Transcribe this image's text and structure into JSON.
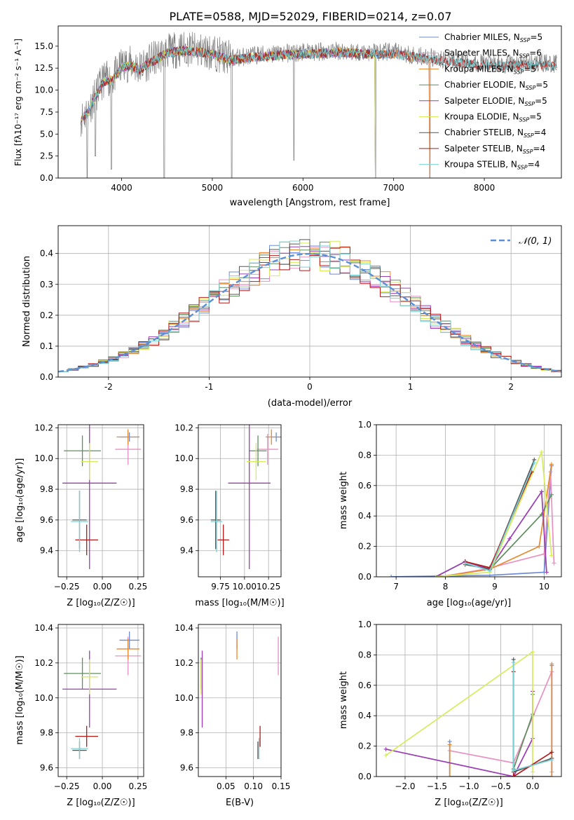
{
  "figure_title": "PLATE=0588, MJD=52029, FIBERID=0214, z=0.07",
  "colors": {
    "Chabrier MILES": "#6b8bd6",
    "Salpeter MILES": "#e991c0",
    "Kroupa MILES": "#e58a2e",
    "Chabrier ELODIE": "#5e8f5e",
    "Salpeter ELODIE": "#9b3cb5",
    "Kroupa ELODIE": "#d6ec5a",
    "Chabrier STELIB": "#555555",
    "Salpeter STELIB": "#b51a1a",
    "Kroupa STELIB": "#79d3d6",
    "data": "#808080",
    "gauss": "#5b8fd6"
  },
  "chart_data": [
    {
      "id": "spectrum",
      "type": "line",
      "title": "PLATE=0588, MJD=52029, FIBERID=0214, z=0.07",
      "xlabel": "wavelength [Angstrom, rest frame]",
      "ylabel": "Flux [fλ10⁻¹⁷ erg cm⁻² s⁻¹ A⁻¹]",
      "xlim": [
        3300,
        8850
      ],
      "ylim": [
        0,
        17.3
      ],
      "xticks": [
        4000,
        5000,
        6000,
        7000,
        8000
      ],
      "yticks": [
        0.0,
        2.5,
        5.0,
        7.5,
        10.0,
        12.5,
        15.0
      ],
      "legend": [
        "Chabrier MILES, N_SSP=5",
        "Salpeter MILES, N_SSP=6",
        "Kroupa MILES, N_SSP=5",
        "Chabrier ELODIE, N_SSP=5",
        "Salpeter ELODIE, N_SSP=5",
        "Kroupa ELODIE, N_SSP=5",
        "Chabrier STELIB, N_SSP=4",
        "Salpeter STELIB, N_SSP=4",
        "Kroupa STELIB, N_SSP=4"
      ],
      "legend_position": "right",
      "continuum": [
        [
          3550,
          6.8
        ],
        [
          3620,
          7.5
        ],
        [
          3700,
          9.2
        ],
        [
          3800,
          11.2
        ],
        [
          3900,
          11.3
        ],
        [
          4000,
          12.8
        ],
        [
          4100,
          13.0
        ],
        [
          4200,
          12.5
        ],
        [
          4300,
          13.2
        ],
        [
          4500,
          14.4
        ],
        [
          4700,
          14.7
        ],
        [
          5000,
          14.3
        ],
        [
          5200,
          13.6
        ],
        [
          5500,
          14.0
        ],
        [
          5800,
          14.2
        ],
        [
          6100,
          14.3
        ],
        [
          6400,
          14.5
        ],
        [
          6700,
          14.3
        ],
        [
          7000,
          14.3
        ],
        [
          7400,
          13.7
        ],
        [
          7800,
          13.2
        ],
        [
          8200,
          12.9
        ],
        [
          8500,
          13.1
        ],
        [
          8800,
          13.0
        ]
      ],
      "model_xmax": {
        "MILES": 7400,
        "ELODIE": 6800,
        "STELIB": 8800
      },
      "dips": [
        [
          3620,
          0.0
        ],
        [
          3710,
          2.5
        ],
        [
          3885,
          1.0
        ],
        [
          4470,
          0.0
        ],
        [
          5215,
          0.0
        ],
        [
          5900,
          2.0
        ],
        [
          6800,
          0.0
        ],
        [
          7400,
          0.0
        ]
      ]
    },
    {
      "id": "residuals",
      "type": "line",
      "xlabel": "(data-model)/error",
      "ylabel": "Normed distribution",
      "xlim": [
        -2.5,
        2.5
      ],
      "ylim": [
        0,
        0.49
      ],
      "xticks": [
        -2,
        -1,
        0,
        1,
        2
      ],
      "yticks": [
        0.0,
        0.1,
        0.2,
        0.3,
        0.4
      ],
      "legend": [
        "𝒩(0, 1)"
      ],
      "legend_position": "top-right",
      "bin_width": 0.1
    },
    {
      "id": "age-vs-Z",
      "type": "scatter",
      "xlabel": "Z [log10(Z/Z☉)]",
      "ylabel": "age  [log10(age/yr)]",
      "xlim": [
        -0.31,
        0.29
      ],
      "ylim": [
        9.23,
        10.22
      ],
      "xticks": [
        -0.25,
        0.0,
        0.25
      ],
      "xticklabels": [
        "−0.25",
        "0.00",
        "0.25"
      ],
      "yticks": [
        9.4,
        9.6,
        9.8,
        10.0,
        10.2
      ],
      "points": [
        {
          "model": "Chabrier MILES",
          "x": 0.19,
          "xerr": 0.07,
          "y": 10.14,
          "yerr": 0.03
        },
        {
          "model": "Salpeter MILES",
          "x": 0.18,
          "xerr": 0.09,
          "y": 10.06,
          "yerr": 0.1
        },
        {
          "model": "Kroupa MILES",
          "x": 0.18,
          "xerr": 0.08,
          "y": 10.14,
          "yerr": 0.05
        },
        {
          "model": "Chabrier ELODIE",
          "x": -0.14,
          "xerr": 0.13,
          "y": 10.05,
          "yerr": 0.1
        },
        {
          "model": "Salpeter ELODIE",
          "x": -0.09,
          "xerr": 0.19,
          "y": 9.84,
          "yerr": 0.56
        },
        {
          "model": "Kroupa ELODIE",
          "x": -0.09,
          "xerr": 0.06,
          "y": 9.98,
          "yerr": 0.12
        },
        {
          "model": "Chabrier STELIB",
          "x": -0.16,
          "xerr": 0.05,
          "y": 9.6,
          "yerr": 0.19
        },
        {
          "model": "Salpeter STELIB",
          "x": -0.11,
          "xerr": 0.08,
          "y": 9.47,
          "yerr": 0.1
        },
        {
          "model": "Kroupa STELIB",
          "x": -0.16,
          "xerr": 0.06,
          "y": 9.59,
          "yerr": 0.2
        }
      ]
    },
    {
      "id": "age-vs-mass",
      "type": "scatter",
      "xlabel": "mass [log10(M/M☉)]",
      "xlim": [
        9.52,
        10.38
      ],
      "ylim": [
        9.23,
        10.22
      ],
      "xticks": [
        9.75,
        10.0,
        10.25
      ],
      "xticklabels": [
        "9.75",
        "10.00",
        "10.25"
      ],
      "yticks": [
        9.4,
        9.6,
        9.8,
        10.0,
        10.2
      ],
      "points": [
        {
          "model": "Chabrier MILES",
          "x": 10.33,
          "xerr": 0.05,
          "y": 10.14,
          "yerr": 0.03
        },
        {
          "model": "Salpeter MILES",
          "x": 10.24,
          "xerr": 0.11,
          "y": 10.06,
          "yerr": 0.1
        },
        {
          "model": "Kroupa MILES",
          "x": 10.28,
          "xerr": 0.06,
          "y": 10.14,
          "yerr": 0.05
        },
        {
          "model": "Chabrier ELODIE",
          "x": 10.14,
          "xerr": 0.09,
          "y": 10.05,
          "yerr": 0.1
        },
        {
          "model": "Salpeter ELODIE",
          "x": 10.05,
          "xerr": 0.22,
          "y": 9.84,
          "yerr": 0.56
        },
        {
          "model": "Kroupa ELODIE",
          "x": 10.12,
          "xerr": 0.1,
          "y": 9.98,
          "yerr": 0.12
        },
        {
          "model": "Chabrier STELIB",
          "x": 9.7,
          "xerr": 0.05,
          "y": 9.6,
          "yerr": 0.19
        },
        {
          "model": "Salpeter STELIB",
          "x": 9.78,
          "xerr": 0.06,
          "y": 9.47,
          "yerr": 0.1
        },
        {
          "model": "Kroupa STELIB",
          "x": 9.71,
          "xerr": 0.06,
          "y": 9.59,
          "yerr": 0.2
        }
      ]
    },
    {
      "id": "weight-vs-age",
      "type": "line",
      "xlabel": "age  [log10(age/yr)]",
      "ylabel": "mass weight",
      "xlim": [
        6.6,
        10.35
      ],
      "ylim": [
        0,
        1.0
      ],
      "xticks": [
        7,
        8,
        9,
        10
      ],
      "yticks": [
        0.0,
        0.2,
        0.4,
        0.6,
        0.8,
        1.0
      ],
      "series": [
        {
          "model": "Chabrier MILES",
          "points": [
            [
              6.9,
              0.0
            ],
            [
              8.9,
              0.01
            ],
            [
              10.0,
              0.03
            ],
            [
              10.15,
              0.73
            ]
          ]
        },
        {
          "model": "Salpeter MILES",
          "points": [
            [
              7.9,
              0.0
            ],
            [
              8.8,
              0.05
            ],
            [
              10.0,
              0.15
            ],
            [
              10.13,
              0.69
            ],
            [
              10.2,
              0.09
            ]
          ]
        },
        {
          "model": "Kroupa MILES",
          "points": [
            [
              7.9,
              0.0
            ],
            [
              8.9,
              0.05
            ],
            [
              9.9,
              0.2
            ],
            [
              10.15,
              0.74
            ]
          ]
        },
        {
          "model": "Chabrier ELODIE",
          "points": [
            [
              7.8,
              0.0
            ],
            [
              8.4,
              0.1
            ],
            [
              8.9,
              0.05
            ],
            [
              9.95,
              0.41
            ],
            [
              10.15,
              0.54
            ]
          ]
        },
        {
          "model": "Salpeter ELODIE",
          "points": [
            [
              7.8,
              0.0
            ],
            [
              8.4,
              0.1
            ],
            [
              8.9,
              0.05
            ],
            [
              9.3,
              0.25
            ],
            [
              9.95,
              0.56
            ],
            [
              10.05,
              0.03
            ]
          ]
        },
        {
          "model": "Kroupa ELODIE",
          "points": [
            [
              7.8,
              0.0
            ],
            [
              8.9,
              0.03
            ],
            [
              9.95,
              0.82
            ],
            [
              10.15,
              0.14
            ]
          ]
        },
        {
          "model": "Chabrier STELIB",
          "points": [
            [
              8.4,
              0.08
            ],
            [
              8.9,
              0.05
            ],
            [
              9.8,
              0.77
            ]
          ]
        },
        {
          "model": "Salpeter STELIB",
          "points": [
            [
              8.4,
              0.1
            ],
            [
              8.9,
              0.06
            ],
            [
              9.75,
              0.69
            ]
          ]
        },
        {
          "model": "Kroupa STELIB",
          "points": [
            [
              8.4,
              0.09
            ],
            [
              8.9,
              0.04
            ],
            [
              9.8,
              0.75
            ]
          ]
        }
      ]
    },
    {
      "id": "mass-vs-Z",
      "type": "scatter",
      "xlabel": "Z [log10(Z/Z☉)]",
      "ylabel": "mass [log10(M/M☉)]",
      "xlim": [
        -0.31,
        0.29
      ],
      "ylim": [
        9.55,
        10.42
      ],
      "xticks": [
        -0.25,
        0.0,
        0.25
      ],
      "xticklabels": [
        "−0.25",
        "0.00",
        "0.25"
      ],
      "yticks": [
        9.6,
        9.8,
        10.0,
        10.2,
        10.4
      ],
      "points": [
        {
          "model": "Chabrier MILES",
          "x": 0.19,
          "xerr": 0.07,
          "y": 10.33,
          "yerr": 0.05
        },
        {
          "model": "Salpeter MILES",
          "x": 0.18,
          "xerr": 0.09,
          "y": 10.24,
          "yerr": 0.11
        },
        {
          "model": "Kroupa MILES",
          "x": 0.18,
          "xerr": 0.08,
          "y": 10.28,
          "yerr": 0.06
        },
        {
          "model": "Chabrier ELODIE",
          "x": -0.14,
          "xerr": 0.13,
          "y": 10.14,
          "yerr": 0.09
        },
        {
          "model": "Salpeter ELODIE",
          "x": -0.09,
          "xerr": 0.19,
          "y": 10.05,
          "yerr": 0.22
        },
        {
          "model": "Kroupa ELODIE",
          "x": -0.09,
          "xerr": 0.06,
          "y": 10.12,
          "yerr": 0.1
        },
        {
          "model": "Chabrier STELIB",
          "x": -0.16,
          "xerr": 0.05,
          "y": 9.7,
          "yerr": 0.05
        },
        {
          "model": "Salpeter STELIB",
          "x": -0.11,
          "xerr": 0.08,
          "y": 9.78,
          "yerr": 0.06
        },
        {
          "model": "Kroupa STELIB",
          "x": -0.16,
          "xerr": 0.06,
          "y": 9.71,
          "yerr": 0.06
        }
      ]
    },
    {
      "id": "mass-vs-ebv",
      "type": "scatter",
      "xlabel": "E(B-V)",
      "xlim": [
        0.0,
        0.15
      ],
      "ylim": [
        9.55,
        10.42
      ],
      "xticks": [
        0.05,
        0.1,
        0.15
      ],
      "xticklabels": [
        "0.05",
        "0.10",
        "0.15"
      ],
      "yticks": [
        9.6,
        9.8,
        10.0,
        10.2,
        10.4
      ],
      "points": [
        {
          "model": "Chabrier MILES",
          "x": 0.07,
          "y": 10.33,
          "yerr": 0.05
        },
        {
          "model": "Salpeter MILES",
          "x": 0.145,
          "y": 10.24,
          "yerr": 0.11
        },
        {
          "model": "Kroupa MILES",
          "x": 0.07,
          "y": 10.28,
          "yerr": 0.06
        },
        {
          "model": "Chabrier ELODIE",
          "x": 0.005,
          "y": 10.14,
          "yerr": 0.09
        },
        {
          "model": "Salpeter ELODIE",
          "x": 0.007,
          "y": 10.05,
          "yerr": 0.22
        },
        {
          "model": "Kroupa ELODIE",
          "x": 0.005,
          "y": 10.12,
          "yerr": 0.1
        },
        {
          "model": "Chabrier STELIB",
          "x": 0.108,
          "y": 9.7,
          "yerr": 0.05
        },
        {
          "model": "Salpeter STELIB",
          "x": 0.112,
          "y": 9.78,
          "yerr": 0.06
        },
        {
          "model": "Kroupa STELIB",
          "x": 0.11,
          "y": 9.71,
          "yerr": 0.06
        }
      ]
    },
    {
      "id": "weight-vs-Z",
      "type": "line",
      "xlabel": "Z [log10(Z/Z☉)]",
      "ylabel": "mass weight",
      "xlim": [
        -2.45,
        0.45
      ],
      "ylim": [
        0,
        1.0
      ],
      "xticks": [
        -2.0,
        -1.5,
        -1.0,
        -0.5,
        0.0
      ],
      "xticklabels": [
        "−2.0",
        "−1.5",
        "−1.0",
        "−0.5",
        "0.0"
      ],
      "yticks": [
        0.0,
        0.2,
        0.4,
        0.6,
        0.8,
        1.0
      ],
      "series": [
        {
          "model": "Chabrier MILES",
          "points": [
            [
              -1.3,
              0.23
            ],
            [
              -1.3,
              0.0
            ],
            [
              0.3,
              0.0
            ],
            [
              0.3,
              0.73
            ]
          ]
        },
        {
          "model": "Salpeter MILES",
          "points": [
            [
              -1.3,
              0.17
            ],
            [
              -0.3,
              0.09
            ],
            [
              0.3,
              0.69
            ],
            [
              0.3,
              0.03
            ]
          ]
        },
        {
          "model": "Kroupa MILES",
          "points": [
            [
              -1.3,
              0.21
            ],
            [
              -1.3,
              0.0
            ],
            [
              0.3,
              0.0
            ],
            [
              0.3,
              0.74
            ]
          ]
        },
        {
          "model": "Salpeter ELODIE",
          "points": [
            [
              -2.3,
              0.18
            ],
            [
              -0.3,
              0.0
            ],
            [
              0.0,
              0.25
            ],
            [
              0.0,
              0.56
            ]
          ]
        },
        {
          "model": "Chabrier ELODIE",
          "points": [
            [
              -0.3,
              0.05
            ],
            [
              0.0,
              0.41
            ],
            [
              0.0,
              0.54
            ]
          ]
        },
        {
          "model": "Kroupa ELODIE",
          "points": [
            [
              -2.3,
              0.14
            ],
            [
              0.0,
              0.82
            ],
            [
              0.0,
              0.03
            ]
          ]
        },
        {
          "model": "Chabrier STELIB",
          "points": [
            [
              -0.3,
              0.77
            ],
            [
              -0.3,
              0.03
            ],
            [
              0.3,
              0.12
            ]
          ]
        },
        {
          "model": "Salpeter STELIB",
          "points": [
            [
              -0.3,
              0.69
            ],
            [
              -0.3,
              0.0
            ],
            [
              0.3,
              0.16
            ]
          ]
        },
        {
          "model": "Kroupa STELIB",
          "points": [
            [
              -0.3,
              0.75
            ],
            [
              -0.3,
              0.04
            ],
            [
              0.3,
              0.11
            ]
          ]
        }
      ]
    }
  ]
}
